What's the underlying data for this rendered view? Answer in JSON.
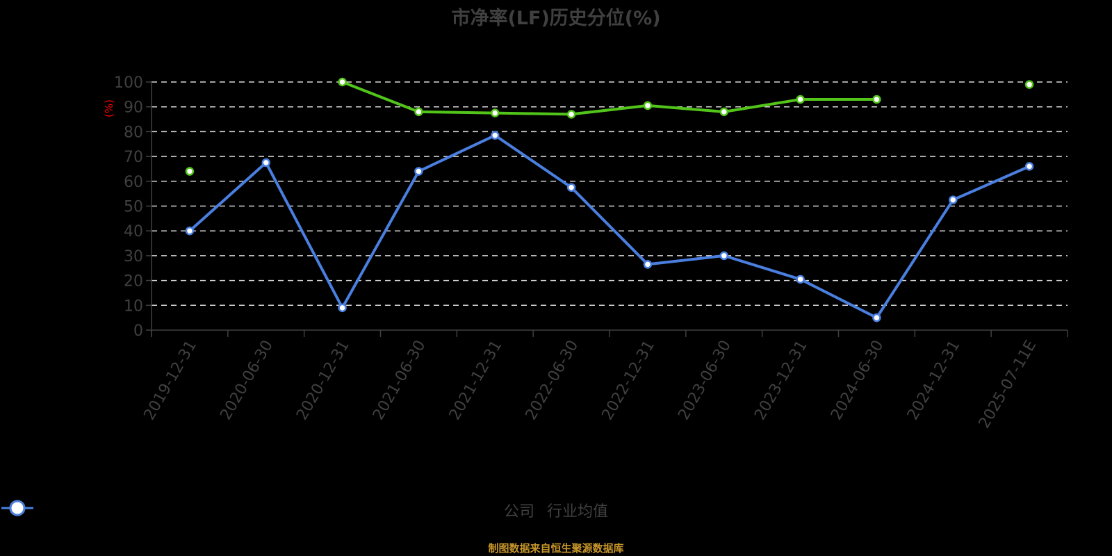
{
  "title": "市净率(LF)历史分位(%)",
  "yaxis_unit": "(%)",
  "footer": "制图数据来自恒生聚源数据库",
  "legend": [
    {
      "label": "公司",
      "color": "#52c41a"
    },
    {
      "label": "行业均值",
      "color": "#4a7fe0"
    }
  ],
  "colors": {
    "company": "#52c41a",
    "industry": "#4a7fe0",
    "axis_text": "#404040",
    "grid": "#d9d9d9",
    "unit": "#ff0000",
    "footer": "#c8962a"
  },
  "chart_data": {
    "type": "line",
    "title": "市净率(LF)历史分位(%)",
    "xlabel": "",
    "ylabel": "(%)",
    "ylim": [
      0,
      100
    ],
    "yticks": [
      0,
      10,
      20,
      30,
      40,
      50,
      60,
      70,
      80,
      90,
      100
    ],
    "grid": true,
    "legend_position": "bottom",
    "categories": [
      "2019-12-31",
      "2020-06-30",
      "2020-12-31",
      "2021-06-30",
      "2021-12-31",
      "2022-06-30",
      "2022-12-31",
      "2023-06-30",
      "2023-12-31",
      "2024-06-30",
      "2024-12-31",
      "2025-07-11E"
    ],
    "series": [
      {
        "name": "公司",
        "values": [
          64,
          null,
          100,
          88,
          87.5,
          87,
          90.5,
          88,
          93,
          93,
          null,
          99
        ]
      },
      {
        "name": "行业均值",
        "values": [
          40,
          67.5,
          9,
          64,
          78.5,
          57.5,
          26.5,
          30,
          20.5,
          5,
          52.5,
          66
        ]
      }
    ]
  }
}
